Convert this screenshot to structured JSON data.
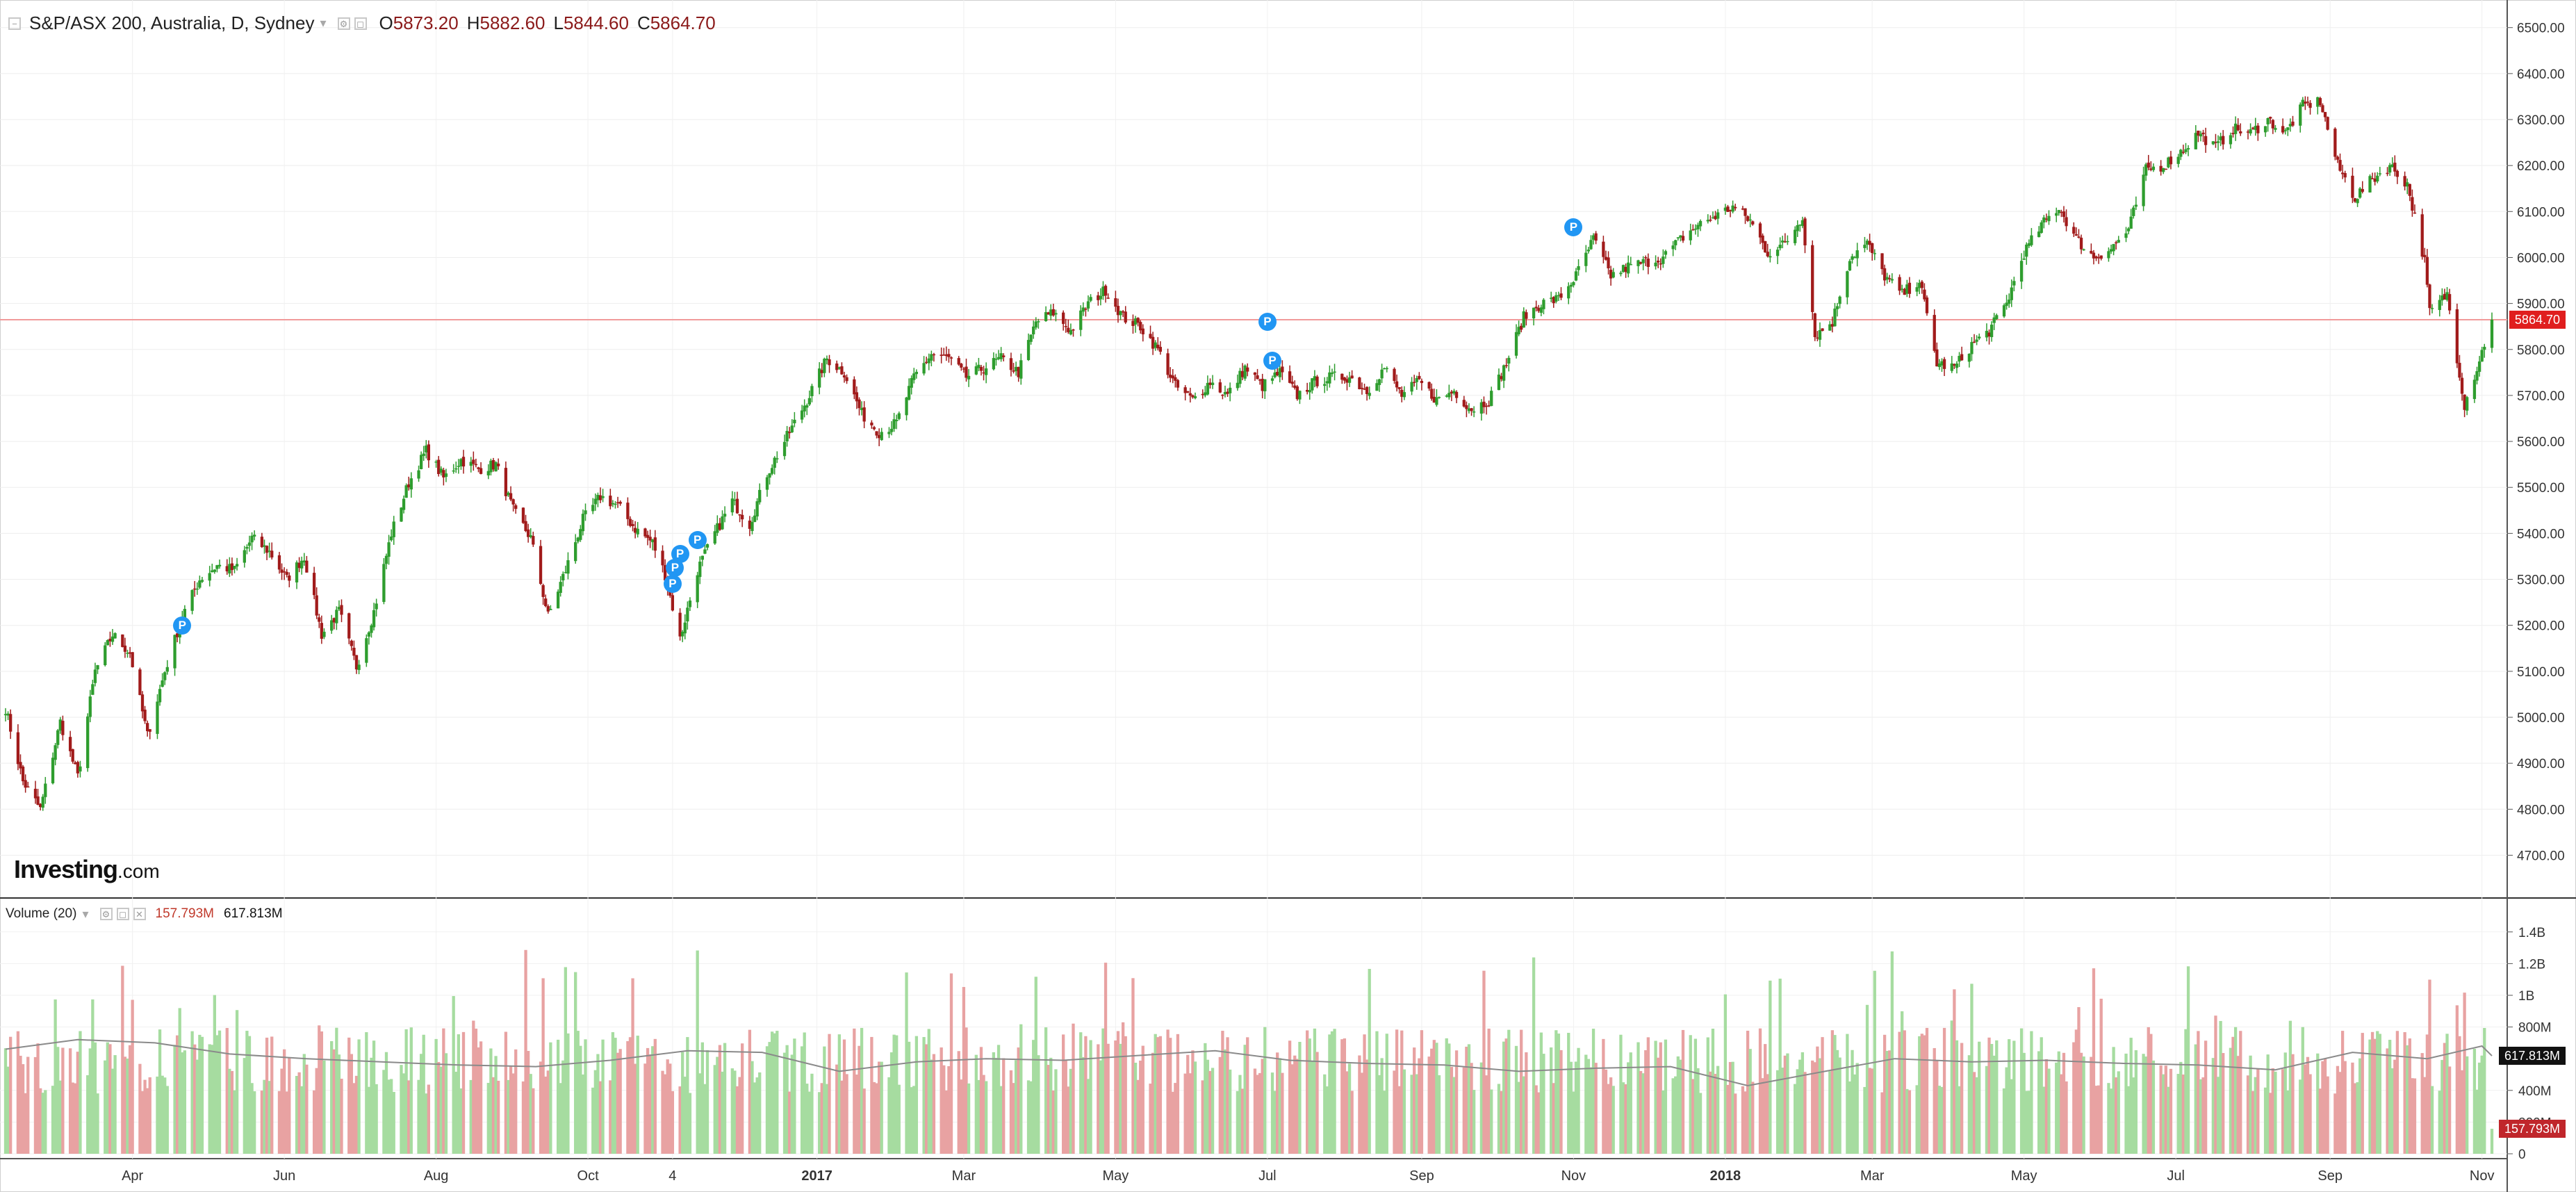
{
  "legend": {
    "symbol": "S&P/ASX 200, Australia, D, Sydney",
    "open_label": "O",
    "open": "5873.20",
    "high_label": "H",
    "high": "5882.60",
    "low_label": "L",
    "low": "5844.60",
    "close_label": "C",
    "close": "5864.70"
  },
  "volume_legend": {
    "title": "Volume (20)",
    "volume": "157.793M",
    "ma": "617.813M"
  },
  "logo": {
    "name": "Investing",
    "suffix": ".com"
  },
  "price_tag": "5864.70",
  "volume_tags": {
    "ma": "617.813M",
    "volume": "157.793M"
  },
  "colors": {
    "up": "#2e9d2e",
    "down": "#a11b1b",
    "vol_up": "#a6dca0",
    "vol_down": "#e8a2a2",
    "ma_line": "#8a8a8a",
    "price_line": "#f19a9a",
    "marker": "#2196f3"
  },
  "marker_icon": "P",
  "chart_data": {
    "type": "candlestick",
    "price_axis": {
      "ticks": [
        4700,
        4800,
        4900,
        5000,
        5100,
        5200,
        5300,
        5400,
        5500,
        5600,
        5700,
        5800,
        5900,
        6000,
        6100,
        6200,
        6300,
        6400,
        6500
      ],
      "tick_labels": [
        "4700.00",
        "4800.00",
        "4900.00",
        "5000.00",
        "5100.00",
        "5200.00",
        "5300.00",
        "5400.00",
        "5500.00",
        "5600.00",
        "5700.00",
        "5800.00",
        "5900.00",
        "6000.00",
        "6100.00",
        "6200.00",
        "6300.00",
        "6400.00",
        "6500.00"
      ],
      "range": [
        4610,
        6560
      ]
    },
    "volume_axis": {
      "ticks": [
        0,
        200,
        400,
        800,
        1000,
        1200,
        1400
      ],
      "tick_labels": [
        "0",
        "200M",
        "400M",
        "800M",
        "1B",
        "1.2B",
        "1.4B"
      ],
      "range": [
        0,
        1500
      ]
    },
    "date_range": [
      "2016-02-10",
      "2018-11-05"
    ],
    "x_ticks": [
      {
        "label": "Apr",
        "date": "2016-04-01"
      },
      {
        "label": "Jun",
        "date": "2016-06-01"
      },
      {
        "label": "Aug",
        "date": "2016-08-01"
      },
      {
        "label": "Oct",
        "date": "2016-10-01"
      },
      {
        "label": "4",
        "date": "2016-11-04"
      },
      {
        "label": "2017",
        "date": "2017-01-01"
      },
      {
        "label": "Mar",
        "date": "2017-03-01"
      },
      {
        "label": "May",
        "date": "2017-05-01"
      },
      {
        "label": "Jul",
        "date": "2017-07-01"
      },
      {
        "label": "Sep",
        "date": "2017-09-01"
      },
      {
        "label": "Nov",
        "date": "2017-11-01"
      },
      {
        "label": "2018",
        "date": "2018-01-01"
      },
      {
        "label": "Mar",
        "date": "2018-03-01"
      },
      {
        "label": "May",
        "date": "2018-05-01"
      },
      {
        "label": "Jul",
        "date": "2018-07-01"
      },
      {
        "label": "Sep",
        "date": "2018-09-01"
      },
      {
        "label": "Nov",
        "date": "2018-11-01"
      }
    ],
    "price_path": [
      [
        "2016-02-10",
        5020
      ],
      [
        "2016-02-17",
        4860
      ],
      [
        "2016-02-24",
        4800
      ],
      [
        "2016-03-03",
        4990
      ],
      [
        "2016-03-10",
        4870
      ],
      [
        "2016-03-17",
        5100
      ],
      [
        "2016-03-24",
        5180
      ],
      [
        "2016-03-31",
        5140
      ],
      [
        "2016-04-07",
        4960
      ],
      [
        "2016-04-14",
        5100
      ],
      [
        "2016-04-21",
        5220
      ],
      [
        "2016-04-28",
        5300
      ],
      [
        "2016-05-05",
        5330
      ],
      [
        "2016-05-12",
        5320
      ],
      [
        "2016-05-19",
        5390
      ],
      [
        "2016-05-26",
        5360
      ],
      [
        "2016-06-02",
        5300
      ],
      [
        "2016-06-09",
        5350
      ],
      [
        "2016-06-16",
        5180
      ],
      [
        "2016-06-23",
        5230
      ],
      [
        "2016-06-30",
        5110
      ],
      [
        "2016-07-07",
        5230
      ],
      [
        "2016-07-14",
        5400
      ],
      [
        "2016-07-21",
        5510
      ],
      [
        "2016-07-28",
        5580
      ],
      [
        "2016-08-04",
        5520
      ],
      [
        "2016-08-11",
        5560
      ],
      [
        "2016-08-18",
        5540
      ],
      [
        "2016-08-25",
        5550
      ],
      [
        "2016-09-01",
        5450
      ],
      [
        "2016-09-08",
        5390
      ],
      [
        "2016-09-15",
        5220
      ],
      [
        "2016-09-22",
        5320
      ],
      [
        "2016-09-29",
        5430
      ],
      [
        "2016-10-06",
        5480
      ],
      [
        "2016-10-13",
        5460
      ],
      [
        "2016-10-20",
        5410
      ],
      [
        "2016-10-27",
        5380
      ],
      [
        "2016-11-01",
        5310
      ],
      [
        "2016-11-07",
        5170
      ],
      [
        "2016-11-14",
        5320
      ],
      [
        "2016-11-21",
        5400
      ],
      [
        "2016-11-28",
        5470
      ],
      [
        "2016-12-05",
        5420
      ],
      [
        "2016-12-12",
        5530
      ],
      [
        "2016-12-19",
        5600
      ],
      [
        "2016-12-28",
        5690
      ],
      [
        "2017-01-05",
        5780
      ],
      [
        "2017-01-12",
        5750
      ],
      [
        "2017-01-19",
        5660
      ],
      [
        "2017-01-26",
        5620
      ],
      [
        "2017-02-02",
        5640
      ],
      [
        "2017-02-09",
        5740
      ],
      [
        "2017-02-16",
        5790
      ],
      [
        "2017-02-23",
        5780
      ],
      [
        "2017-03-02",
        5740
      ],
      [
        "2017-03-09",
        5760
      ],
      [
        "2017-03-16",
        5780
      ],
      [
        "2017-03-23",
        5750
      ],
      [
        "2017-03-30",
        5860
      ],
      [
        "2017-04-06",
        5880
      ],
      [
        "2017-04-13",
        5840
      ],
      [
        "2017-04-20",
        5900
      ],
      [
        "2017-04-27",
        5930
      ],
      [
        "2017-05-04",
        5870
      ],
      [
        "2017-05-11",
        5850
      ],
      [
        "2017-05-18",
        5800
      ],
      [
        "2017-05-25",
        5720
      ],
      [
        "2017-06-01",
        5690
      ],
      [
        "2017-06-08",
        5730
      ],
      [
        "2017-06-15",
        5700
      ],
      [
        "2017-06-22",
        5760
      ],
      [
        "2017-06-29",
        5720
      ],
      [
        "2017-07-06",
        5750
      ],
      [
        "2017-07-13",
        5700
      ],
      [
        "2017-07-20",
        5730
      ],
      [
        "2017-07-27",
        5740
      ],
      [
        "2017-08-03",
        5740
      ],
      [
        "2017-08-10",
        5710
      ],
      [
        "2017-08-17",
        5760
      ],
      [
        "2017-08-24",
        5700
      ],
      [
        "2017-08-31",
        5730
      ],
      [
        "2017-09-07",
        5690
      ],
      [
        "2017-09-14",
        5710
      ],
      [
        "2017-09-21",
        5670
      ],
      [
        "2017-09-28",
        5690
      ],
      [
        "2017-10-05",
        5770
      ],
      [
        "2017-10-12",
        5870
      ],
      [
        "2017-10-19",
        5900
      ],
      [
        "2017-10-26",
        5910
      ],
      [
        "2017-11-02",
        5960
      ],
      [
        "2017-11-09",
        6040
      ],
      [
        "2017-11-16",
        5960
      ],
      [
        "2017-11-23",
        5980
      ],
      [
        "2017-11-30",
        5990
      ],
      [
        "2017-12-07",
        6000
      ],
      [
        "2017-12-14",
        6040
      ],
      [
        "2017-12-21",
        6070
      ],
      [
        "2017-12-28",
        6090
      ],
      [
        "2018-01-04",
        6110
      ],
      [
        "2018-01-11",
        6080
      ],
      [
        "2018-01-18",
        6010
      ],
      [
        "2018-01-25",
        6030
      ],
      [
        "2018-02-01",
        6090
      ],
      [
        "2018-02-06",
        5830
      ],
      [
        "2018-02-13",
        5860
      ],
      [
        "2018-02-20",
        6000
      ],
      [
        "2018-02-27",
        6030
      ],
      [
        "2018-03-06",
        5960
      ],
      [
        "2018-03-13",
        5920
      ],
      [
        "2018-03-20",
        5950
      ],
      [
        "2018-03-27",
        5770
      ],
      [
        "2018-04-03",
        5760
      ],
      [
        "2018-04-10",
        5810
      ],
      [
        "2018-04-17",
        5840
      ],
      [
        "2018-04-24",
        5900
      ],
      [
        "2018-05-01",
        6010
      ],
      [
        "2018-05-08",
        6070
      ],
      [
        "2018-05-15",
        6110
      ],
      [
        "2018-05-22",
        6040
      ],
      [
        "2018-05-29",
        6000
      ],
      [
        "2018-06-05",
        6020
      ],
      [
        "2018-06-12",
        6060
      ],
      [
        "2018-06-19",
        6190
      ],
      [
        "2018-06-26",
        6200
      ],
      [
        "2018-07-03",
        6230
      ],
      [
        "2018-07-10",
        6270
      ],
      [
        "2018-07-17",
        6240
      ],
      [
        "2018-07-24",
        6280
      ],
      [
        "2018-07-31",
        6270
      ],
      [
        "2018-08-07",
        6300
      ],
      [
        "2018-08-14",
        6270
      ],
      [
        "2018-08-21",
        6330
      ],
      [
        "2018-08-28",
        6340
      ],
      [
        "2018-09-04",
        6200
      ],
      [
        "2018-09-11",
        6130
      ],
      [
        "2018-09-18",
        6170
      ],
      [
        "2018-09-25",
        6200
      ],
      [
        "2018-10-02",
        6160
      ],
      [
        "2018-10-09",
        5990
      ],
      [
        "2018-10-11",
        5880
      ],
      [
        "2018-10-18",
        5920
      ],
      [
        "2018-10-25",
        5680
      ],
      [
        "2018-10-30",
        5760
      ],
      [
        "2018-11-05",
        5864.7
      ]
    ],
    "volume_moving_average": [
      [
        "2016-02-10",
        660
      ],
      [
        "2016-03-10",
        720
      ],
      [
        "2016-04-10",
        700
      ],
      [
        "2016-05-10",
        630
      ],
      [
        "2016-06-10",
        600
      ],
      [
        "2016-07-10",
        580
      ],
      [
        "2016-08-10",
        560
      ],
      [
        "2016-09-10",
        550
      ],
      [
        "2016-10-10",
        590
      ],
      [
        "2016-11-10",
        650
      ],
      [
        "2016-12-10",
        640
      ],
      [
        "2017-01-10",
        520
      ],
      [
        "2017-02-10",
        580
      ],
      [
        "2017-03-10",
        600
      ],
      [
        "2017-04-10",
        590
      ],
      [
        "2017-05-10",
        620
      ],
      [
        "2017-06-10",
        650
      ],
      [
        "2017-07-10",
        590
      ],
      [
        "2017-08-10",
        570
      ],
      [
        "2017-09-10",
        560
      ],
      [
        "2017-10-10",
        520
      ],
      [
        "2017-11-10",
        540
      ],
      [
        "2017-12-10",
        550
      ],
      [
        "2018-01-10",
        430
      ],
      [
        "2018-02-10",
        520
      ],
      [
        "2018-03-10",
        600
      ],
      [
        "2018-04-10",
        580
      ],
      [
        "2018-05-10",
        590
      ],
      [
        "2018-06-10",
        570
      ],
      [
        "2018-07-10",
        560
      ],
      [
        "2018-08-10",
        530
      ],
      [
        "2018-09-10",
        640
      ],
      [
        "2018-10-10",
        600
      ],
      [
        "2018-11-01",
        680
      ],
      [
        "2018-11-05",
        617.8
      ]
    ],
    "last_volume": 157.793,
    "last_volume_ma": 617.813,
    "annotations": [
      {
        "label": "P",
        "date": "2016-04-21",
        "price": 5200
      },
      {
        "label": "P",
        "date": "2016-11-04",
        "price": 5290
      },
      {
        "label": "P",
        "date": "2016-11-05",
        "price": 5325
      },
      {
        "label": "P",
        "date": "2016-11-07",
        "price": 5355
      },
      {
        "label": "P",
        "date": "2016-11-14",
        "price": 5385
      },
      {
        "label": "P",
        "date": "2017-07-01",
        "price": 5860
      },
      {
        "label": "P",
        "date": "2017-07-03",
        "price": 5775
      },
      {
        "label": "P",
        "date": "2017-11-01",
        "price": 6065
      }
    ],
    "current_price": 5864.7
  }
}
